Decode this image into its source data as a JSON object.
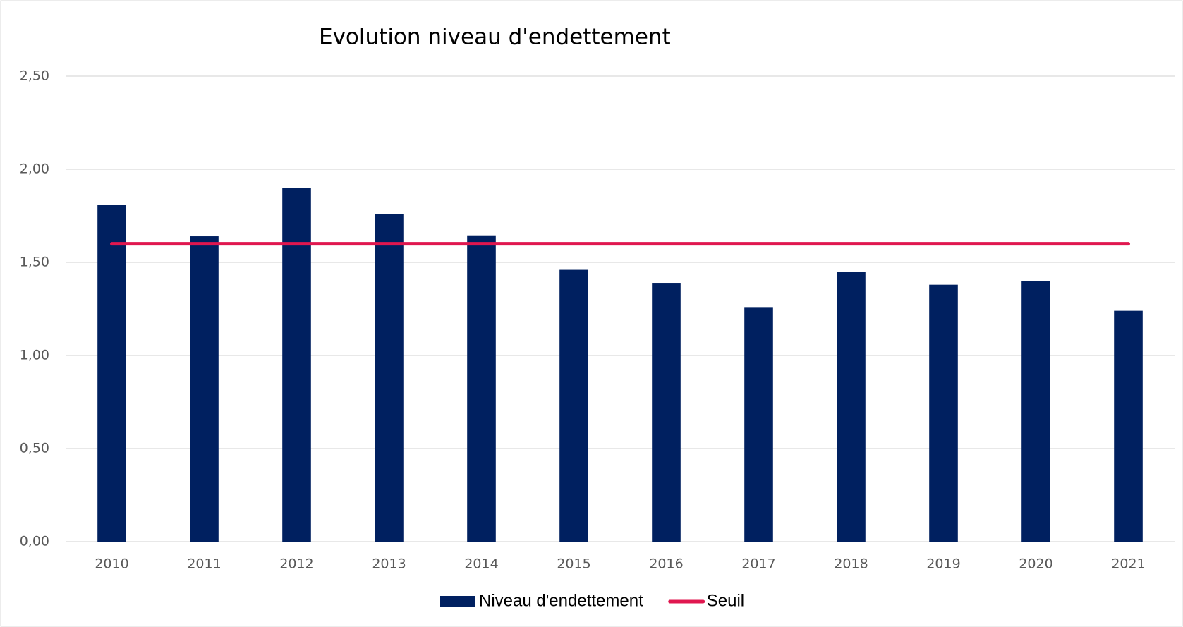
{
  "chart_data": {
    "type": "bar",
    "title": "Evolution niveau d'endettement",
    "categories": [
      "2010",
      "2011",
      "2012",
      "2013",
      "2014",
      "2015",
      "2016",
      "2017",
      "2018",
      "2019",
      "2020",
      "2021"
    ],
    "series": [
      {
        "name": "Niveau d'endettement",
        "color": "#002060",
        "type": "bar",
        "values": [
          1.81,
          1.64,
          1.9,
          1.76,
          1.645,
          1.46,
          1.39,
          1.26,
          1.45,
          1.38,
          1.4,
          1.24
        ]
      },
      {
        "name": "Seuil",
        "color": "#e0174f",
        "type": "line",
        "values": [
          1.6,
          1.6,
          1.6,
          1.6,
          1.6,
          1.6,
          1.6,
          1.6,
          1.6,
          1.6,
          1.6,
          1.6
        ]
      }
    ],
    "ylim": [
      0,
      2.5
    ],
    "yticks": [
      {
        "value": 0,
        "label": "0,00"
      },
      {
        "value": 0.5,
        "label": "0,50"
      },
      {
        "value": 1,
        "label": "1,00"
      },
      {
        "value": 1.5,
        "label": "1,50"
      },
      {
        "value": 2,
        "label": "2,00"
      },
      {
        "value": 2.5,
        "label": "2,50"
      }
    ],
    "grid": true,
    "legend": "bottom"
  }
}
